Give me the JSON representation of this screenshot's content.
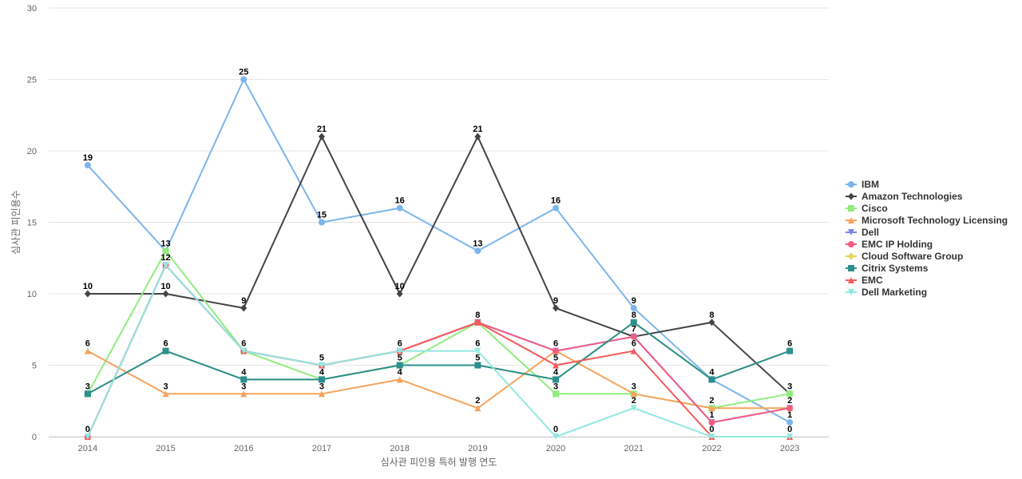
{
  "chart_data": {
    "type": "line",
    "title": "",
    "xlabel": "심사관 피인용 특허 발행 연도",
    "ylabel": "심사관 피인용수",
    "ylim": [
      0,
      30
    ],
    "yticks": [
      0,
      5,
      10,
      15,
      20,
      25,
      30
    ],
    "categories": [
      "2014",
      "2015",
      "2016",
      "2017",
      "2018",
      "2019",
      "2020",
      "2021",
      "2022",
      "2023"
    ],
    "grid": "horizontal",
    "legend_position": "right",
    "series": [
      {
        "name": "IBM",
        "color": "#7cb5ec",
        "marker": "circle",
        "values": [
          19,
          13,
          25,
          15,
          16,
          13,
          16,
          9,
          4,
          1
        ]
      },
      {
        "name": "Amazon Technologies",
        "color": "#434348",
        "marker": "diamond",
        "values": [
          10,
          10,
          9,
          21,
          10,
          21,
          9,
          7,
          8,
          3
        ]
      },
      {
        "name": "Cisco",
        "color": "#90ed7d",
        "marker": "square",
        "values": [
          3,
          13,
          6,
          4,
          5,
          8,
          3,
          3,
          2,
          3
        ]
      },
      {
        "name": "Microsoft Technology Licensing",
        "color": "#f7a35c",
        "marker": "triangle",
        "values": [
          6,
          3,
          3,
          3,
          4,
          2,
          6,
          3,
          2,
          2
        ]
      },
      {
        "name": "Dell",
        "color": "#8085e9",
        "marker": "triangle-down",
        "values": [
          0,
          12,
          6,
          5,
          6,
          8,
          6,
          7,
          1,
          2
        ]
      },
      {
        "name": "EMC IP Holding",
        "color": "#f15c80",
        "marker": "circle",
        "values": [
          0,
          12,
          6,
          5,
          6,
          8,
          6,
          7,
          1,
          2
        ]
      },
      {
        "name": "Cloud Software Group",
        "color": "#e4d354",
        "marker": "diamond",
        "values": [
          3,
          6,
          4,
          4,
          5,
          5,
          4,
          8,
          4,
          6
        ]
      },
      {
        "name": "Citrix Systems",
        "color": "#2b908f",
        "marker": "square",
        "values": [
          3,
          6,
          4,
          4,
          5,
          5,
          4,
          8,
          4,
          6
        ]
      },
      {
        "name": "EMC",
        "color": "#f45b5b",
        "marker": "triangle",
        "values": [
          0,
          12,
          6,
          5,
          6,
          8,
          5,
          6,
          0,
          0
        ]
      },
      {
        "name": "Dell Marketing",
        "color": "#91e8e1",
        "marker": "triangle-down",
        "values": [
          0,
          12,
          6,
          5,
          6,
          6,
          0,
          2,
          0,
          0
        ]
      }
    ]
  }
}
